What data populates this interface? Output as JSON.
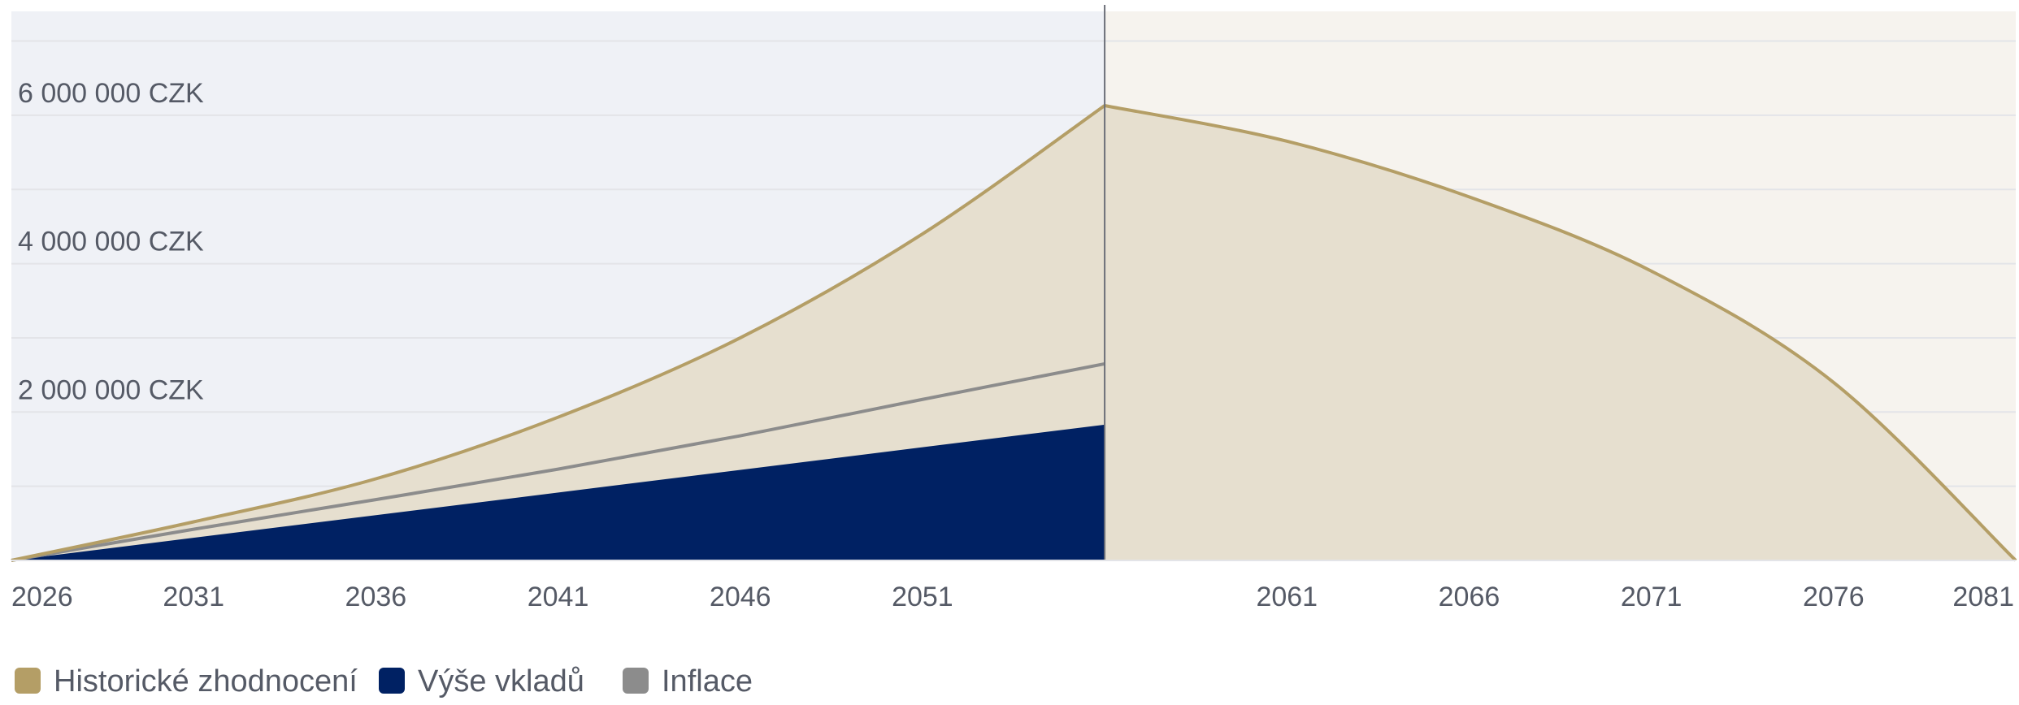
{
  "chart_data": {
    "type": "area",
    "x_range": [
      2026,
      2081
    ],
    "y_range": [
      0,
      7400000
    ],
    "y_ticks": [
      {
        "value": 2000000,
        "label": "2 000 000 CZK"
      },
      {
        "value": 4000000,
        "label": "4 000 000 CZK"
      },
      {
        "value": 6000000,
        "label": "6 000 000 CZK"
      }
    ],
    "y_gridlines": [
      1000000,
      2000000,
      3000000,
      4000000,
      5000000,
      6000000,
      7000000
    ],
    "x_ticks": [
      2026,
      2031,
      2036,
      2041,
      2046,
      2051,
      2061,
      2066,
      2071,
      2076,
      2081
    ],
    "phase_split_year": 2056,
    "grid": true,
    "legend_position": "bottom-left",
    "colors": {
      "accumulation_background": "#eff1f6",
      "payout_background": "#f6f3ee",
      "historic_fill": "#e6dfcf",
      "historic_line": "#b49e66",
      "deposits_fill": "#002163",
      "inflation_line": "#8c8c8c",
      "grid": "#e3e4e8",
      "split_line": "#6c6f78"
    },
    "series": [
      {
        "name": "Historické zhodnocení",
        "key": "historic",
        "x": [
          2026,
          2031,
          2036,
          2041,
          2046,
          2051,
          2056,
          2061,
          2066,
          2071,
          2076,
          2081
        ],
        "y": [
          0,
          520000,
          1100000,
          1930000,
          3000000,
          4400000,
          6130000,
          5650000,
          4900000,
          3900000,
          2400000,
          0
        ]
      },
      {
        "name": "Výše vkladů",
        "key": "deposits",
        "x": [
          2026,
          2056
        ],
        "y": [
          0,
          1830000
        ]
      },
      {
        "name": "Inflace",
        "key": "inflation",
        "x": [
          2026,
          2031,
          2036,
          2041,
          2046,
          2051,
          2056
        ],
        "y": [
          0,
          420000,
          820000,
          1230000,
          1680000,
          2170000,
          2650000
        ]
      }
    ]
  }
}
